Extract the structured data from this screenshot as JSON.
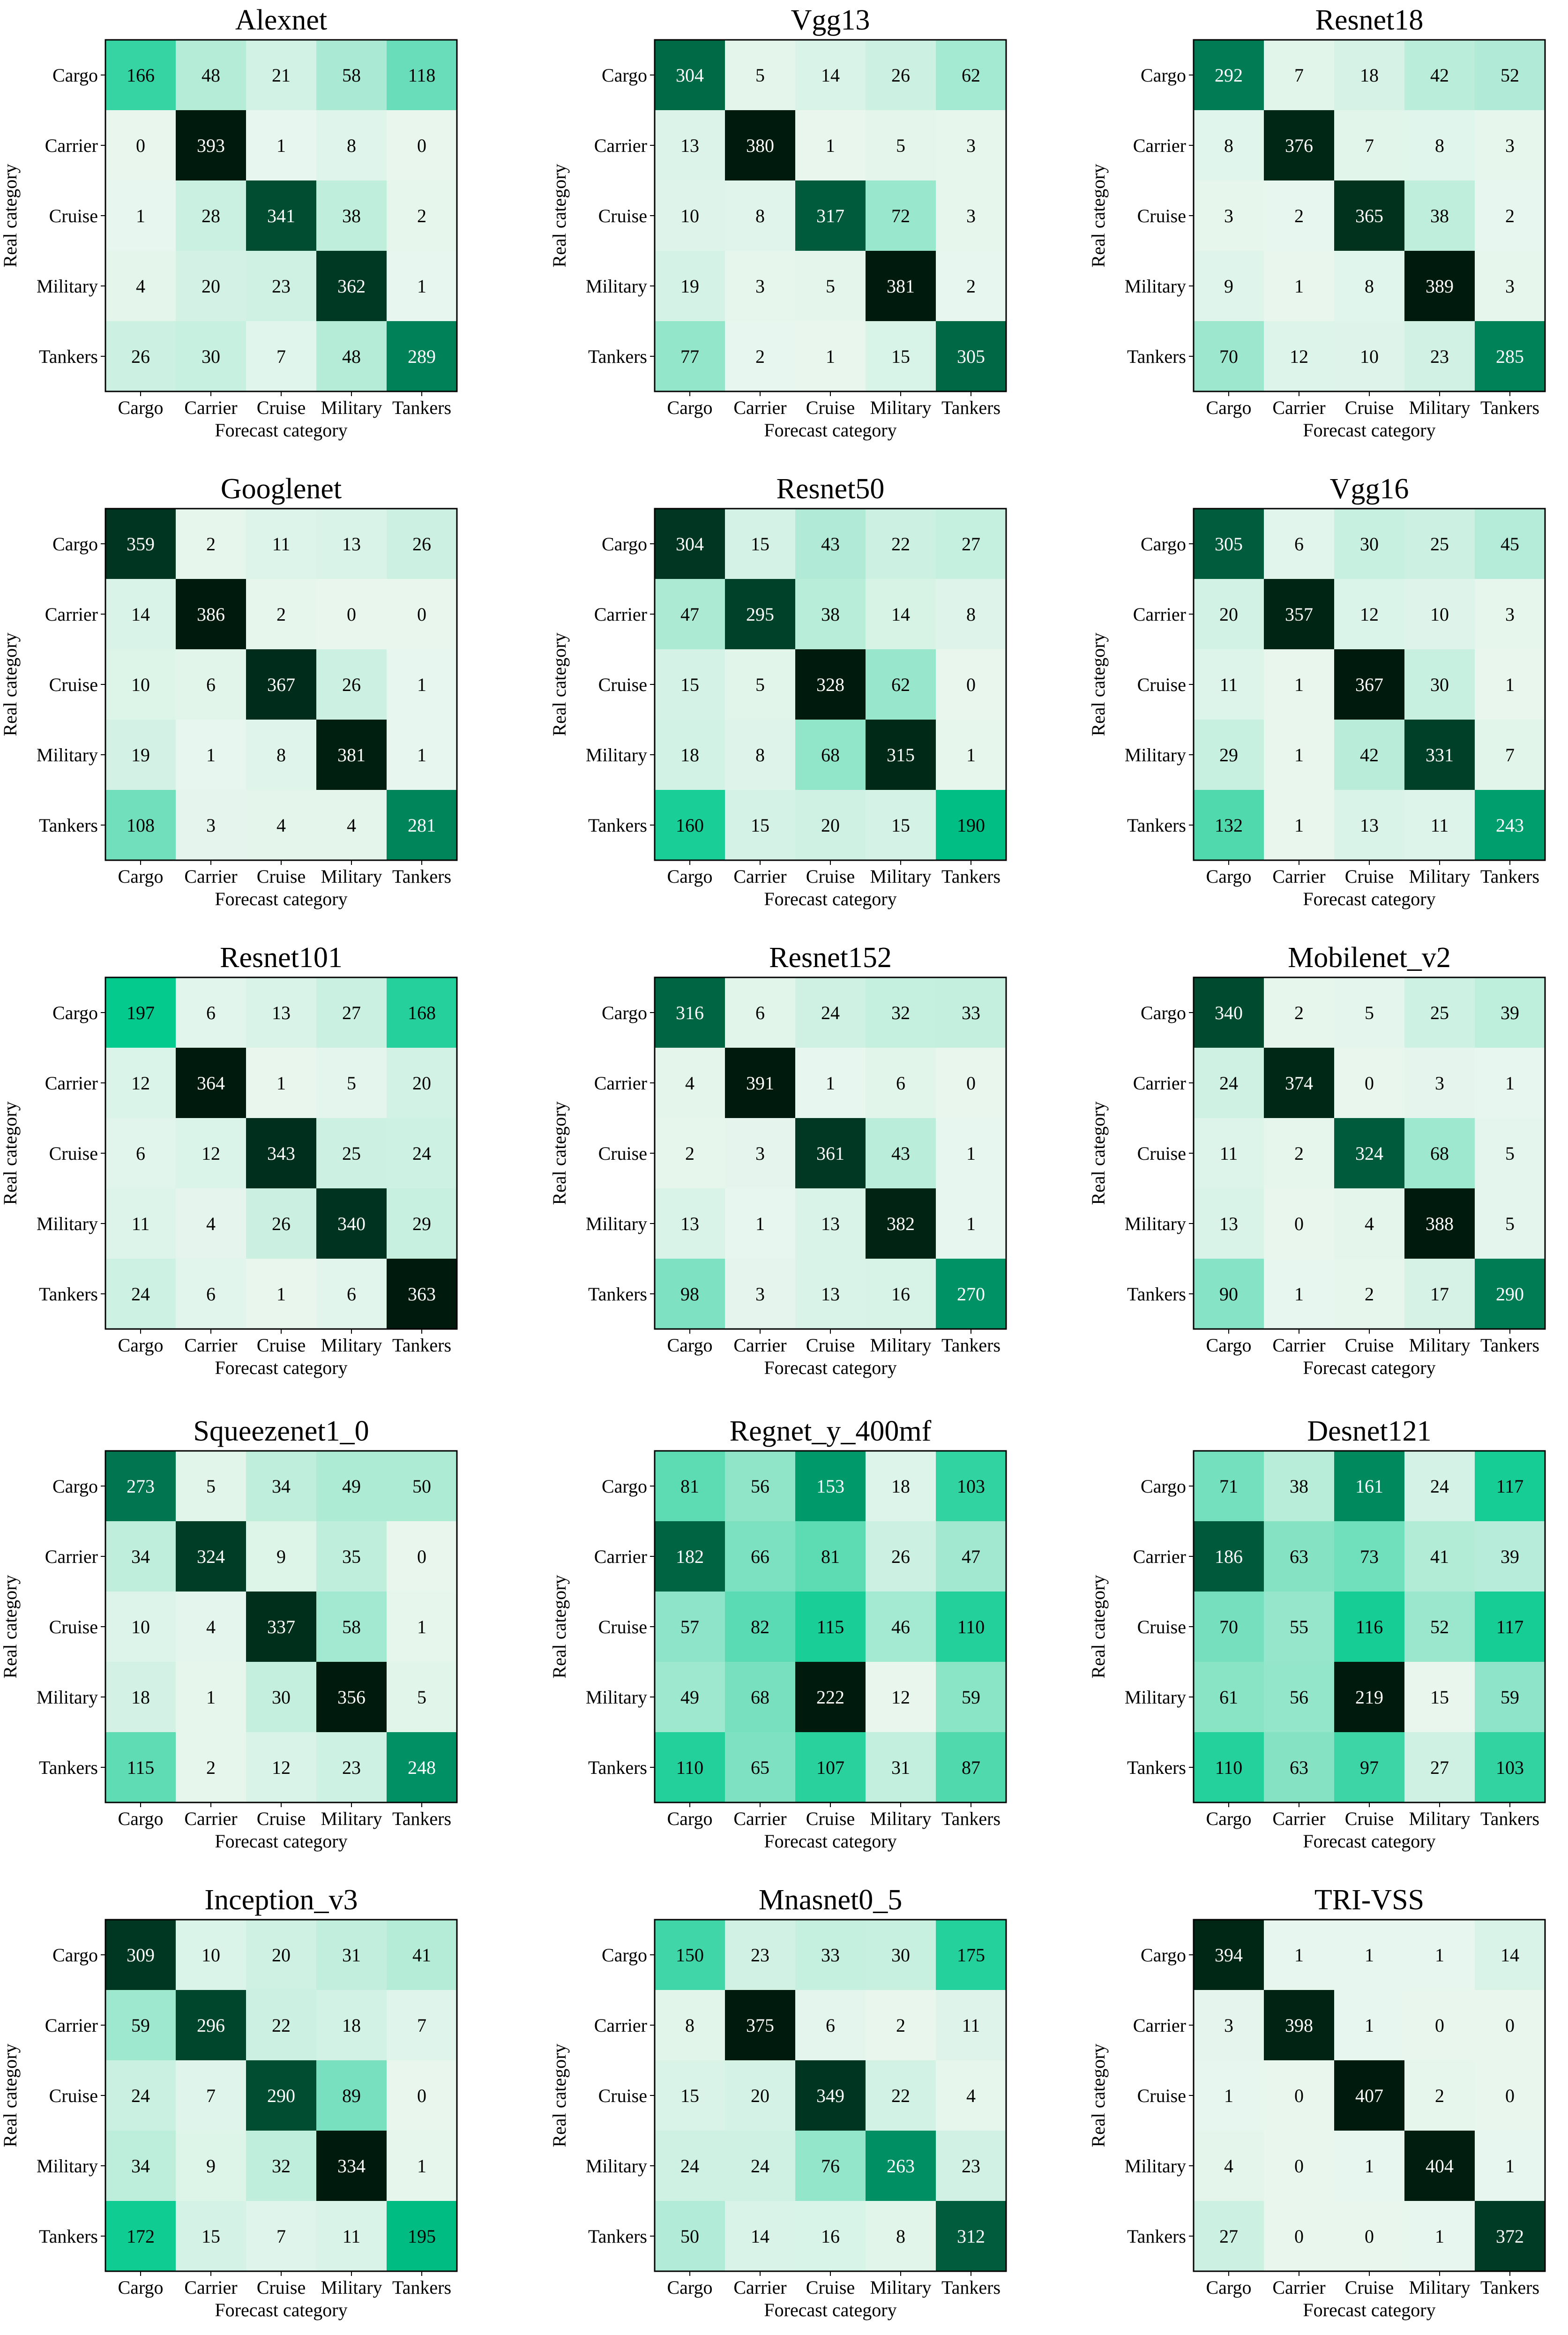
{
  "labels": {
    "categories": [
      "Cargo",
      "Carrier",
      "Cruise",
      "Military",
      "Tankers"
    ],
    "xlabel": "Forecast category",
    "ylabel": "Real category"
  },
  "colors": {
    "low": "#e8f6ee",
    "mid": "#00c98c",
    "high": "#001a0d",
    "border": "#000000"
  },
  "chart_data": [
    {
      "type": "heatmap",
      "title": "Alexnet",
      "matrix": [
        [
          166,
          48,
          21,
          58,
          118
        ],
        [
          0,
          393,
          1,
          8,
          0
        ],
        [
          1,
          28,
          341,
          38,
          2
        ],
        [
          4,
          20,
          23,
          362,
          1
        ],
        [
          26,
          30,
          7,
          48,
          289
        ]
      ]
    },
    {
      "type": "heatmap",
      "title": "Vgg13",
      "matrix": [
        [
          304,
          5,
          14,
          26,
          62
        ],
        [
          13,
          380,
          1,
          5,
          3
        ],
        [
          10,
          8,
          317,
          72,
          3
        ],
        [
          19,
          3,
          5,
          381,
          2
        ],
        [
          77,
          2,
          1,
          15,
          305
        ]
      ]
    },
    {
      "type": "heatmap",
      "title": "Resnet18",
      "matrix": [
        [
          292,
          7,
          18,
          42,
          52
        ],
        [
          8,
          376,
          7,
          8,
          3
        ],
        [
          3,
          2,
          365,
          38,
          2
        ],
        [
          9,
          1,
          8,
          389,
          3
        ],
        [
          70,
          12,
          10,
          23,
          285
        ]
      ]
    },
    {
      "type": "heatmap",
      "title": "Googlenet",
      "matrix": [
        [
          359,
          2,
          11,
          13,
          26
        ],
        [
          14,
          386,
          2,
          0,
          0
        ],
        [
          10,
          6,
          367,
          26,
          1
        ],
        [
          19,
          1,
          8,
          381,
          1
        ],
        [
          108,
          3,
          4,
          4,
          281
        ]
      ]
    },
    {
      "type": "heatmap",
      "title": "Resnet50",
      "matrix": [
        [
          304,
          15,
          43,
          22,
          27
        ],
        [
          47,
          295,
          38,
          14,
          8
        ],
        [
          15,
          5,
          328,
          62,
          0
        ],
        [
          18,
          8,
          68,
          315,
          1
        ],
        [
          160,
          15,
          20,
          15,
          190
        ]
      ]
    },
    {
      "type": "heatmap",
      "title": "Vgg16",
      "matrix": [
        [
          305,
          6,
          30,
          25,
          45
        ],
        [
          20,
          357,
          12,
          10,
          3
        ],
        [
          11,
          1,
          367,
          30,
          1
        ],
        [
          29,
          1,
          42,
          331,
          7
        ],
        [
          132,
          1,
          13,
          11,
          243
        ]
      ]
    },
    {
      "type": "heatmap",
      "title": "Resnet101",
      "matrix": [
        [
          197,
          6,
          13,
          27,
          168
        ],
        [
          12,
          364,
          1,
          5,
          20
        ],
        [
          6,
          12,
          343,
          25,
          24
        ],
        [
          11,
          4,
          26,
          340,
          29
        ],
        [
          24,
          6,
          1,
          6,
          363
        ]
      ]
    },
    {
      "type": "heatmap",
      "title": "Resnet152",
      "matrix": [
        [
          316,
          6,
          24,
          32,
          33
        ],
        [
          4,
          391,
          1,
          6,
          0
        ],
        [
          2,
          3,
          361,
          43,
          1
        ],
        [
          13,
          1,
          13,
          382,
          1
        ],
        [
          98,
          3,
          13,
          16,
          270
        ]
      ]
    },
    {
      "type": "heatmap",
      "title": "Mobilenet_v2",
      "matrix": [
        [
          340,
          2,
          5,
          25,
          39
        ],
        [
          24,
          374,
          0,
          3,
          1
        ],
        [
          11,
          2,
          324,
          68,
          5
        ],
        [
          13,
          0,
          4,
          388,
          5
        ],
        [
          90,
          1,
          2,
          17,
          290
        ]
      ]
    },
    {
      "type": "heatmap",
      "title": "Squeezenet1_0",
      "matrix": [
        [
          273,
          5,
          34,
          49,
          50
        ],
        [
          34,
          324,
          9,
          35,
          0
        ],
        [
          10,
          4,
          337,
          58,
          1
        ],
        [
          18,
          1,
          30,
          356,
          5
        ],
        [
          115,
          2,
          12,
          23,
          248
        ]
      ]
    },
    {
      "type": "heatmap",
      "title": "Regnet_y_400mf",
      "matrix": [
        [
          81,
          56,
          153,
          18,
          103
        ],
        [
          182,
          66,
          81,
          26,
          47
        ],
        [
          57,
          82,
          115,
          46,
          110
        ],
        [
          49,
          68,
          222,
          12,
          59
        ],
        [
          110,
          65,
          107,
          31,
          87
        ]
      ]
    },
    {
      "type": "heatmap",
      "title": "Desnet121",
      "matrix": [
        [
          71,
          38,
          161,
          24,
          117
        ],
        [
          186,
          63,
          73,
          41,
          39
        ],
        [
          70,
          55,
          116,
          52,
          117
        ],
        [
          61,
          56,
          219,
          15,
          59
        ],
        [
          110,
          63,
          97,
          27,
          103
        ]
      ]
    },
    {
      "type": "heatmap",
      "title": "Inception_v3",
      "matrix": [
        [
          309,
          10,
          20,
          31,
          41
        ],
        [
          59,
          296,
          22,
          18,
          7
        ],
        [
          24,
          7,
          290,
          89,
          0
        ],
        [
          34,
          9,
          32,
          334,
          1
        ],
        [
          172,
          15,
          7,
          11,
          195
        ]
      ]
    },
    {
      "type": "heatmap",
      "title": "Mnasnet0_5",
      "matrix": [
        [
          150,
          23,
          33,
          30,
          175
        ],
        [
          8,
          375,
          6,
          2,
          11
        ],
        [
          15,
          20,
          349,
          22,
          4
        ],
        [
          24,
          24,
          76,
          263,
          23
        ],
        [
          50,
          14,
          16,
          8,
          312
        ]
      ]
    },
    {
      "type": "heatmap",
      "title": "TRI-VSS",
      "matrix": [
        [
          394,
          1,
          1,
          1,
          14
        ],
        [
          3,
          398,
          1,
          0,
          0
        ],
        [
          1,
          0,
          407,
          2,
          0
        ],
        [
          4,
          0,
          1,
          404,
          1
        ],
        [
          27,
          0,
          0,
          1,
          372
        ]
      ]
    }
  ]
}
